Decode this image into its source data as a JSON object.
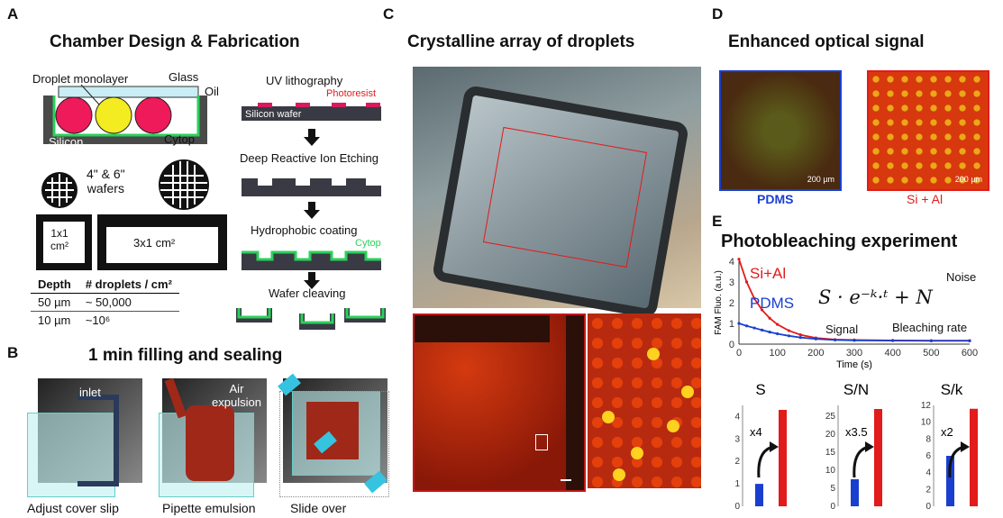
{
  "panelA": {
    "label": "A",
    "title": "Chamber Design & Fabrication",
    "cross_section": {
      "droplet_monolayer": "Droplet monolayer",
      "glass": "Glass",
      "oil": "Oil",
      "silicon": "Silicon",
      "cytop": "Cytop"
    },
    "wafers": "4\" & 6\"\nwafers",
    "chip_small": "1x1\ncm²",
    "chip_large": "3x1 cm²",
    "table": {
      "headers": [
        "Depth",
        "# droplets / cm²"
      ],
      "rows": [
        [
          "50 µm",
          "~ 50,000"
        ],
        [
          "10 µm",
          "~10⁶"
        ]
      ]
    },
    "fab_steps": {
      "uv": "UV lithography",
      "photoresist": "Photoresist",
      "silicon_wafer": "Silicon wafer",
      "drie": "Deep Reactive Ion Etching",
      "hydro": "Hydrophobic coating",
      "cytop": "Cytop",
      "cleave": "Wafer cleaving"
    }
  },
  "panelB": {
    "label": "B",
    "title": "1 min filling and sealing",
    "inlet": "inlet",
    "air": "Air\nexpulsion",
    "captions": [
      "Adjust cover slip",
      "Pipette emulsion",
      "Slide over"
    ]
  },
  "panelC": {
    "label": "C",
    "title": "Crystalline array of droplets"
  },
  "panelD": {
    "label": "D",
    "title": "Enhanced optical signal",
    "scale": "200 µm",
    "left_caption": "PDMS",
    "right_caption": "Si + Al",
    "colors": {
      "pdms": "#1a3fcf",
      "sial": "#e21b1b"
    }
  },
  "panelE": {
    "label": "E",
    "title": "Photobleaching experiment",
    "equation": "S · e⁻ᵏ·ᵗ + N",
    "noise": "Noise",
    "signal": "Signal",
    "bleach": "Bleaching rate",
    "series_labels": {
      "sial": "Si+Al",
      "pdms": "PDMS"
    }
  },
  "chart_data": [
    {
      "type": "line",
      "xlabel": "Time (s)",
      "ylabel": "FAM Fluo. (a.u.)",
      "xlim": [
        0,
        600
      ],
      "ylim": [
        0,
        4
      ],
      "xticks": [
        0,
        100,
        200,
        300,
        400,
        500,
        600
      ],
      "yticks": [
        0,
        1,
        2,
        3,
        4
      ],
      "series": [
        {
          "name": "Si+Al",
          "color": "#e21b1b",
          "x": [
            0,
            20,
            40,
            60,
            80,
            100,
            130,
            160,
            200,
            250,
            300,
            400,
            500,
            600
          ],
          "y": [
            4.1,
            3.0,
            2.2,
            1.65,
            1.25,
            0.95,
            0.65,
            0.45,
            0.3,
            0.22,
            0.2,
            0.18,
            0.17,
            0.17
          ]
        },
        {
          "name": "PDMS",
          "color": "#1a3fcf",
          "x": [
            0,
            20,
            40,
            60,
            80,
            100,
            130,
            160,
            200,
            250,
            300,
            400,
            500,
            600
          ],
          "y": [
            1.0,
            0.88,
            0.78,
            0.68,
            0.58,
            0.5,
            0.4,
            0.32,
            0.25,
            0.2,
            0.18,
            0.17,
            0.16,
            0.16
          ]
        }
      ]
    },
    {
      "type": "bar",
      "title": "S",
      "categories": [
        "PDMS",
        "Si+Al"
      ],
      "values": [
        1.0,
        4.3
      ],
      "ylim": [
        0,
        4.5
      ],
      "yticks": [
        0,
        1,
        2,
        3,
        4
      ],
      "annotation": "x4"
    },
    {
      "type": "bar",
      "title": "S/N",
      "categories": [
        "PDMS",
        "Si+Al"
      ],
      "values": [
        7.5,
        27
      ],
      "ylim": [
        0,
        28
      ],
      "yticks": [
        0,
        5,
        10,
        15,
        20,
        25
      ],
      "annotation": "x3.5"
    },
    {
      "type": "bar",
      "title": "S/k",
      "categories": [
        "PDMS",
        "Si+Al"
      ],
      "values": [
        6,
        11.6
      ],
      "ylim": [
        0,
        12
      ],
      "yticks": [
        0,
        2,
        4,
        6,
        8,
        10,
        12
      ],
      "annotation": "x2"
    }
  ]
}
